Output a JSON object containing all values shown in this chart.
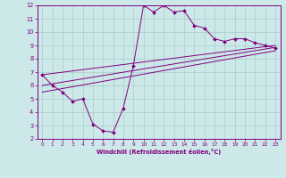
{
  "xlabel": "Windchill (Refroidissement éolien,°C)",
  "background_color": "#cce8e8",
  "line_color": "#800080",
  "grid_color": "#aacccc",
  "xlim": [
    -0.5,
    23.5
  ],
  "ylim": [
    2,
    12
  ],
  "xticks": [
    0,
    1,
    2,
    3,
    4,
    5,
    6,
    7,
    8,
    9,
    10,
    11,
    12,
    13,
    14,
    15,
    16,
    17,
    18,
    19,
    20,
    21,
    22,
    23
  ],
  "yticks": [
    2,
    3,
    4,
    5,
    6,
    7,
    8,
    9,
    10,
    11,
    12
  ],
  "main_x": [
    0,
    1,
    2,
    3,
    4,
    5,
    6,
    7,
    8,
    9,
    10,
    11,
    12,
    13,
    14,
    15,
    16,
    17,
    18,
    19,
    20,
    21,
    22,
    23
  ],
  "main_y": [
    6.8,
    6.0,
    5.5,
    4.8,
    5.0,
    3.1,
    2.6,
    2.5,
    4.3,
    7.5,
    12.0,
    11.5,
    12.0,
    11.5,
    11.6,
    10.5,
    10.3,
    9.5,
    9.3,
    9.5,
    9.5,
    9.2,
    9.0,
    8.8
  ],
  "line1_x": [
    0,
    23
  ],
  "line1_y": [
    6.8,
    9.0
  ],
  "line2_x": [
    0,
    23
  ],
  "line2_y": [
    6.0,
    8.85
  ],
  "line3_x": [
    0,
    23
  ],
  "line3_y": [
    5.5,
    8.6
  ]
}
